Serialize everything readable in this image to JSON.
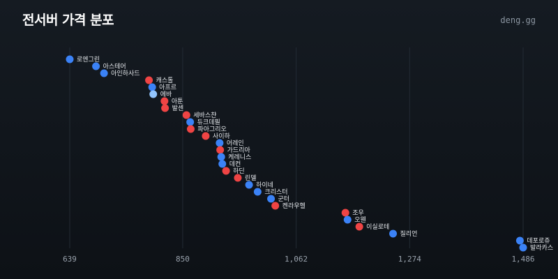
{
  "header": {
    "title": "전서버 가격 분포",
    "brand": "deng.gg"
  },
  "colors": {
    "blue": "#3b82f6",
    "red": "#ef4444",
    "light_blue": "#93c5fd",
    "grid": "#232b34",
    "background": "#10151b"
  },
  "chart_data": {
    "type": "scatter",
    "title": "전서버 가격 분포",
    "xlabel": "",
    "ylabel": "",
    "xlim": [
      639,
      1486
    ],
    "x_ticks": [
      639,
      850,
      1062,
      1274,
      1486
    ],
    "x_tick_labels": [
      "639",
      "850",
      "1,062",
      "1,274",
      "1,486"
    ],
    "grid": true,
    "points": [
      {
        "label": "로엔그린",
        "x": 639,
        "color": "blue"
      },
      {
        "label": "아스테어",
        "x": 688,
        "color": "blue"
      },
      {
        "label": "아인하사드",
        "x": 703,
        "color": "blue"
      },
      {
        "label": "캐스톨",
        "x": 787,
        "color": "red"
      },
      {
        "label": "아프르",
        "x": 793,
        "color": "blue"
      },
      {
        "label": "에바",
        "x": 795,
        "color": "light_blue"
      },
      {
        "label": "아툰",
        "x": 816,
        "color": "red"
      },
      {
        "label": "발센",
        "x": 817,
        "color": "red"
      },
      {
        "label": "세바스챤",
        "x": 857,
        "color": "red"
      },
      {
        "label": "듀크데필",
        "x": 864,
        "color": "blue"
      },
      {
        "label": "파아그리오",
        "x": 865,
        "color": "red"
      },
      {
        "label": "사이하",
        "x": 893,
        "color": "red"
      },
      {
        "label": "어레인",
        "x": 919,
        "color": "blue"
      },
      {
        "label": "가드리아",
        "x": 920,
        "color": "red"
      },
      {
        "label": "케레니스",
        "x": 922,
        "color": "blue"
      },
      {
        "label": "데컨",
        "x": 924,
        "color": "blue"
      },
      {
        "label": "하딘",
        "x": 931,
        "color": "red"
      },
      {
        "label": "린델",
        "x": 953,
        "color": "red"
      },
      {
        "label": "하이네",
        "x": 974,
        "color": "blue"
      },
      {
        "label": "크리스터",
        "x": 990,
        "color": "blue"
      },
      {
        "label": "군터",
        "x": 1015,
        "color": "blue"
      },
      {
        "label": "켄라우헬",
        "x": 1023,
        "color": "red"
      },
      {
        "label": "조우",
        "x": 1154,
        "color": "red"
      },
      {
        "label": "오웬",
        "x": 1158,
        "color": "blue"
      },
      {
        "label": "이실로테",
        "x": 1180,
        "color": "red"
      },
      {
        "label": "질리언",
        "x": 1243,
        "color": "blue"
      },
      {
        "label": "데포로쥬",
        "x": 1480,
        "color": "blue"
      },
      {
        "label": "발라카스",
        "x": 1486,
        "color": "blue"
      }
    ]
  }
}
